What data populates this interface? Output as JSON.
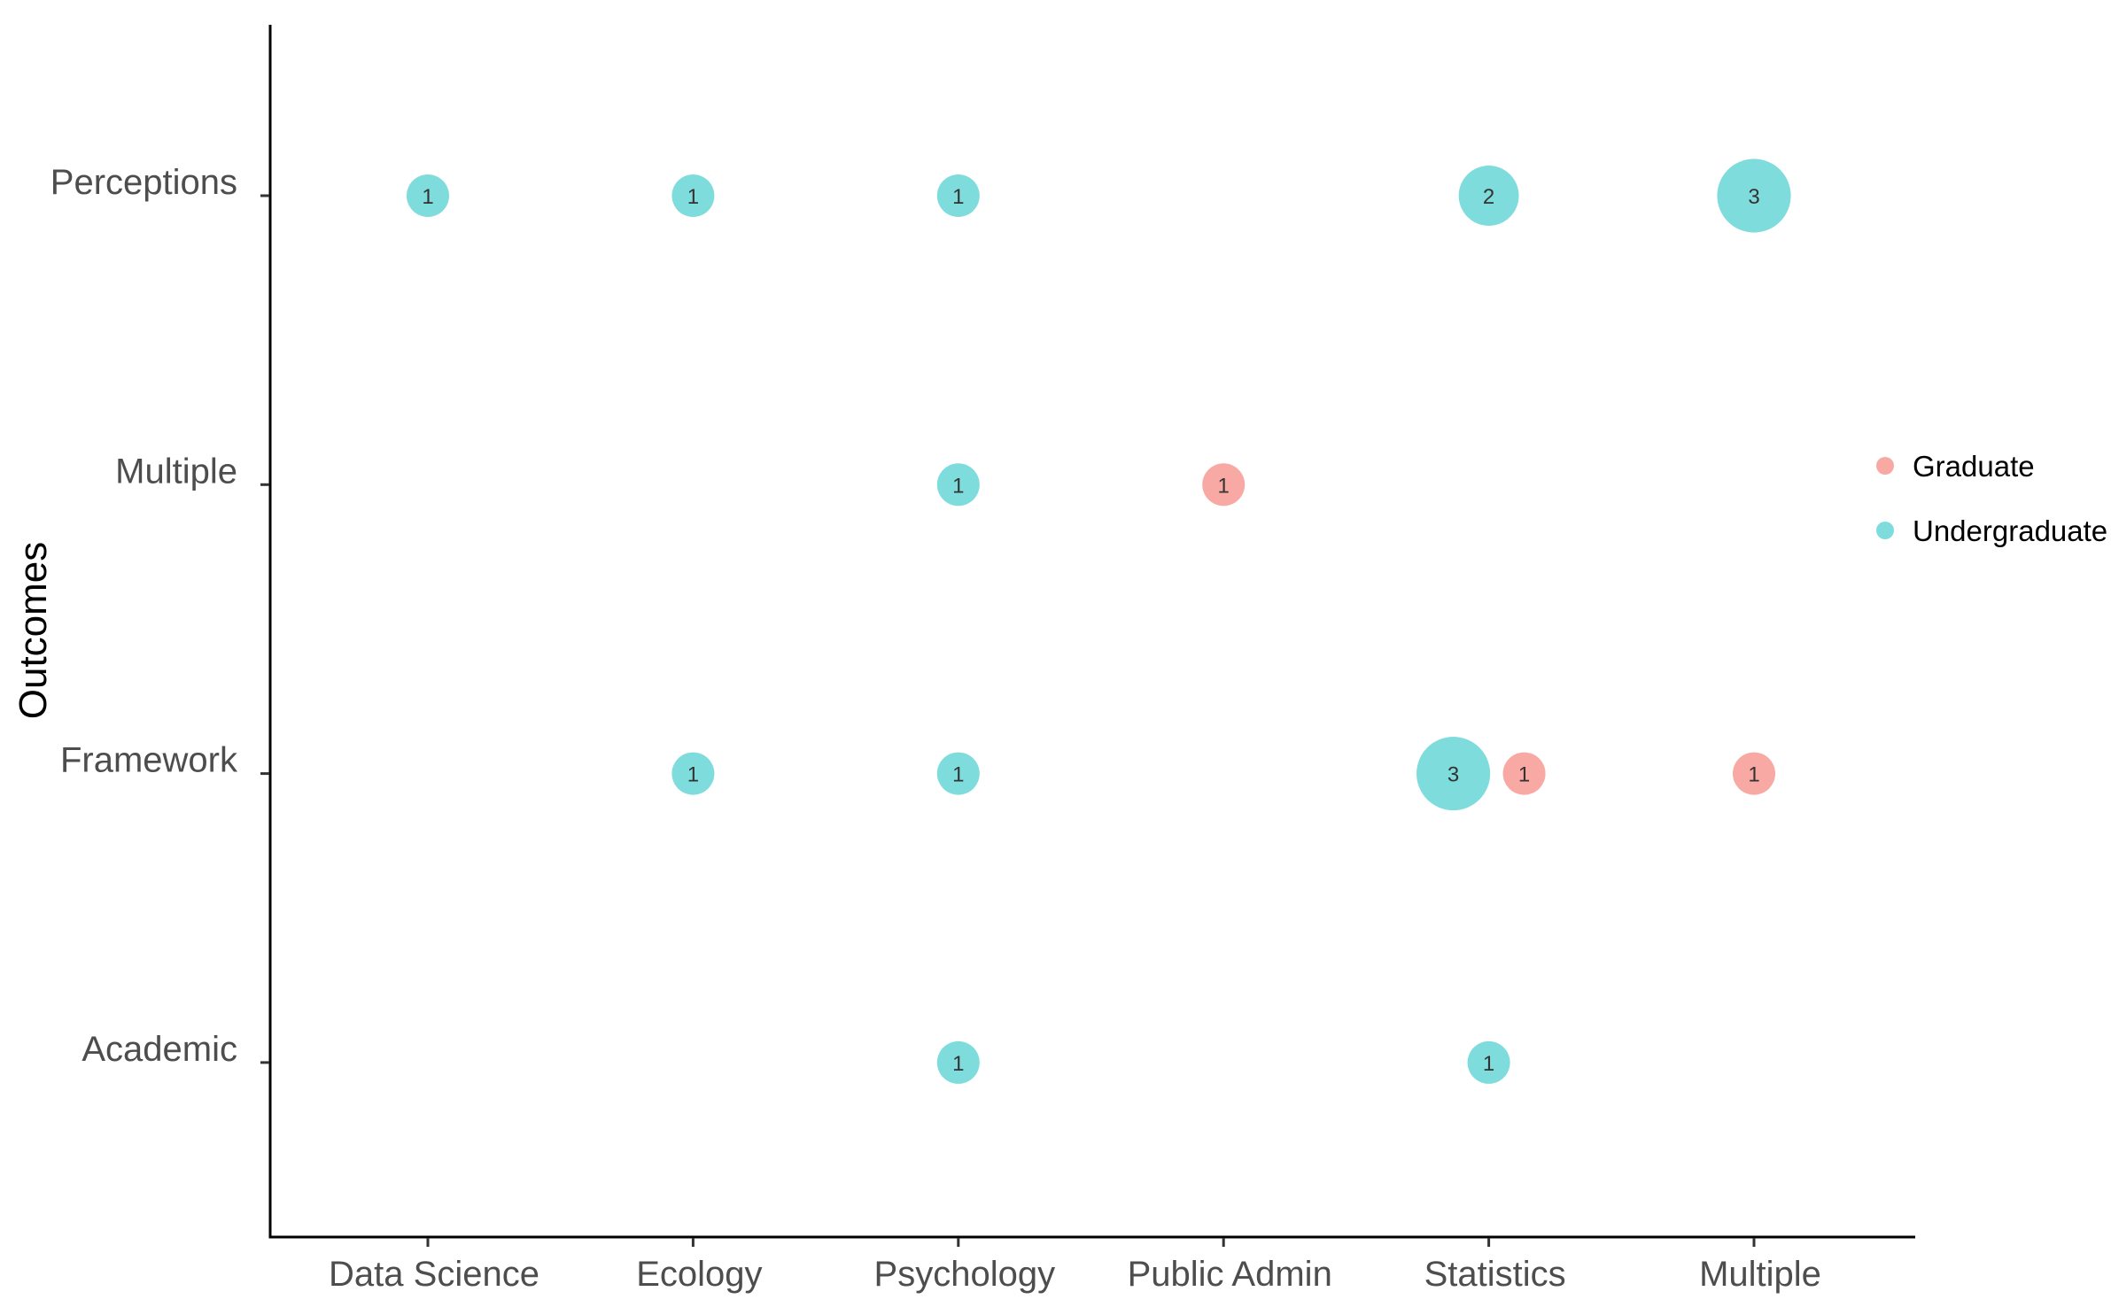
{
  "chart_data": {
    "type": "scatter",
    "title": "",
    "xlabel": "",
    "ylabel": "Outcomes",
    "x_categories": [
      "Data Science",
      "Ecology",
      "Psychology",
      "Public Admin",
      "Statistics",
      "Multiple"
    ],
    "y_categories": [
      "Academic",
      "Framework",
      "Multiple",
      "Perceptions"
    ],
    "grid": false,
    "legend_position": "right",
    "series": [
      {
        "name": "Graduate",
        "color": "#F8A9A3",
        "points": [
          {
            "x": "Public Admin",
            "y": "Multiple",
            "count": 1
          },
          {
            "x": "Statistics",
            "y": "Framework",
            "count": 1
          },
          {
            "x": "Multiple",
            "y": "Framework",
            "count": 1
          }
        ]
      },
      {
        "name": "Undergraduate",
        "color": "#7FDCDC",
        "points": [
          {
            "x": "Data Science",
            "y": "Perceptions",
            "count": 1
          },
          {
            "x": "Ecology",
            "y": "Perceptions",
            "count": 1
          },
          {
            "x": "Psychology",
            "y": "Perceptions",
            "count": 1
          },
          {
            "x": "Statistics",
            "y": "Perceptions",
            "count": 2
          },
          {
            "x": "Multiple",
            "y": "Perceptions",
            "count": 3
          },
          {
            "x": "Psychology",
            "y": "Multiple",
            "count": 1
          },
          {
            "x": "Ecology",
            "y": "Framework",
            "count": 1
          },
          {
            "x": "Psychology",
            "y": "Framework",
            "count": 1
          },
          {
            "x": "Statistics",
            "y": "Framework",
            "count": 3
          },
          {
            "x": "Psychology",
            "y": "Academic",
            "count": 1
          },
          {
            "x": "Statistics",
            "y": "Academic",
            "count": 1
          }
        ]
      }
    ]
  }
}
